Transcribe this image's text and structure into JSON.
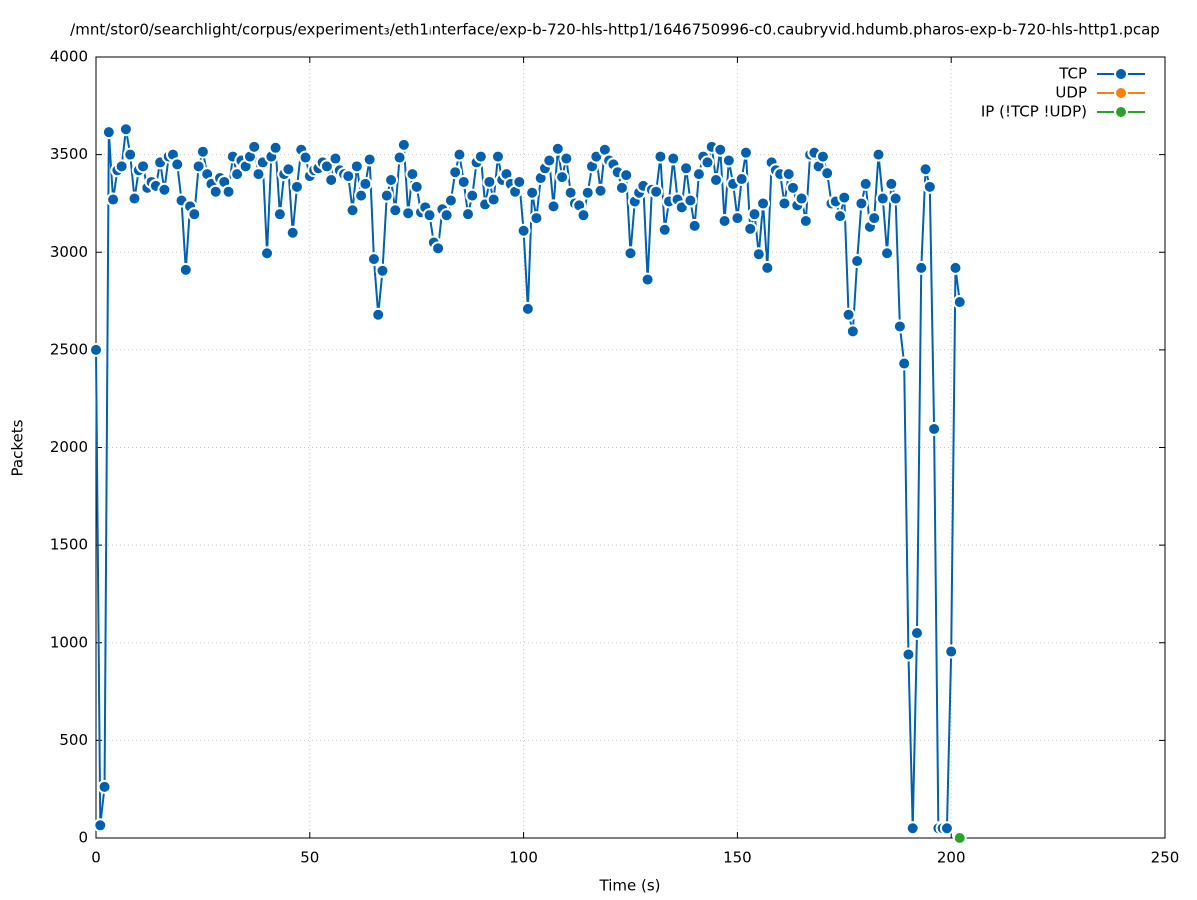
{
  "chart_data": {
    "type": "line",
    "title": "/mnt/stor0/searchlight/corpus/experiment₃/eth1ᵢnterface/exp-b-720-hls-http1/1646750996-c0.caubryvid.hdumb.pharos-exp-b-720-hls-http1.pcap",
    "x_label": "Time (s)",
    "y_label": "Packets",
    "xlim": [
      0,
      250
    ],
    "xticks": [
      0,
      50,
      100,
      150,
      200,
      250
    ],
    "ylim": [
      0,
      4000
    ],
    "yticks": [
      0,
      500,
      1000,
      1500,
      2000,
      2500,
      3000,
      3500,
      4000
    ],
    "grid": true,
    "legend": "top-right",
    "series": [
      {
        "name": "TCP",
        "color": "#0060ad",
        "x": [
          0,
          1,
          2,
          3,
          4,
          5,
          6,
          7,
          8,
          9,
          10,
          11,
          12,
          13,
          14,
          15,
          16,
          17,
          18,
          19,
          20,
          21,
          22,
          23,
          24,
          25,
          26,
          27,
          28,
          29,
          30,
          31,
          32,
          33,
          34,
          35,
          36,
          37,
          38,
          39,
          40,
          41,
          42,
          43,
          44,
          45,
          46,
          47,
          48,
          49,
          50,
          51,
          52,
          53,
          54,
          55,
          56,
          57,
          58,
          59,
          60,
          61,
          62,
          63,
          64,
          65,
          66,
          67,
          68,
          69,
          70,
          71,
          72,
          73,
          74,
          75,
          76,
          77,
          78,
          79,
          80,
          81,
          82,
          83,
          84,
          85,
          86,
          87,
          88,
          89,
          90,
          91,
          92,
          93,
          94,
          95,
          96,
          97,
          98,
          99,
          100,
          101,
          102,
          103,
          104,
          105,
          106,
          107,
          108,
          109,
          110,
          111,
          112,
          113,
          114,
          115,
          116,
          117,
          118,
          119,
          120,
          121,
          122,
          123,
          124,
          125,
          126,
          127,
          128,
          129,
          130,
          131,
          132,
          133,
          134,
          135,
          136,
          137,
          138,
          139,
          140,
          141,
          142,
          143,
          144,
          145,
          146,
          147,
          148,
          149,
          150,
          151,
          152,
          153,
          154,
          155,
          156,
          157,
          158,
          159,
          160,
          161,
          162,
          163,
          164,
          165,
          166,
          167,
          168,
          169,
          170,
          171,
          172,
          173,
          174,
          175,
          176,
          177,
          178,
          179,
          180,
          181,
          182,
          183,
          184,
          185,
          186,
          187,
          188,
          189,
          190,
          191,
          192,
          193,
          194,
          195,
          196,
          197,
          198,
          199,
          200,
          201,
          202
        ],
        "values": [
          2500,
          65,
          262,
          3615,
          3270,
          3420,
          3440,
          3630,
          3500,
          3275,
          3420,
          3440,
          3330,
          3360,
          3340,
          3460,
          3320,
          3490,
          3500,
          3450,
          3265,
          2910,
          3235,
          3195,
          3440,
          3515,
          3400,
          3350,
          3310,
          3380,
          3360,
          3310,
          3490,
          3400,
          3470,
          3440,
          3490,
          3540,
          3400,
          3460,
          2995,
          3490,
          3535,
          3195,
          3400,
          3425,
          3100,
          3335,
          3525,
          3485,
          3390,
          3420,
          3430,
          3460,
          3440,
          3370,
          3480,
          3420,
          3400,
          3390,
          3215,
          3440,
          3290,
          3350,
          3475,
          2965,
          2680,
          2905,
          3290,
          3370,
          3215,
          3485,
          3550,
          3200,
          3400,
          3335,
          3205,
          3230,
          3190,
          3050,
          3020,
          3220,
          3190,
          3265,
          3410,
          3500,
          3360,
          3195,
          3290,
          3460,
          3490,
          3245,
          3360,
          3270,
          3490,
          3370,
          3400,
          3350,
          3310,
          3360,
          3110,
          2710,
          3305,
          3175,
          3380,
          3430,
          3470,
          3235,
          3530,
          3385,
          3480,
          3305,
          3250,
          3240,
          3190,
          3305,
          3440,
          3490,
          3315,
          3525,
          3470,
          3450,
          3410,
          3330,
          3395,
          2995,
          3260,
          3305,
          3340,
          2860,
          3320,
          3310,
          3490,
          3115,
          3260,
          3480,
          3270,
          3230,
          3430,
          3265,
          3135,
          3400,
          3490,
          3460,
          3540,
          3370,
          3525,
          3160,
          3470,
          3350,
          3175,
          3375,
          3510,
          3120,
          3195,
          2990,
          3250,
          2920,
          3460,
          3420,
          3400,
          3250,
          3400,
          3330,
          3240,
          3275,
          3160,
          3500,
          3510,
          3440,
          3490,
          3405,
          3250,
          3260,
          3185,
          3280,
          2680,
          2595,
          2955,
          3250,
          3350,
          3130,
          3175,
          3500,
          3275,
          2995,
          3350,
          3275,
          2620,
          2430,
          940,
          50,
          1050,
          2920,
          3425,
          3335,
          2095,
          50,
          50,
          50,
          955,
          2920,
          2745
        ]
      },
      {
        "name": "UDP",
        "color": "#ff7f0e",
        "x": [],
        "values": []
      },
      {
        "name": "IP (!TCP  !UDP)",
        "color": "#2ca02c",
        "x": [
          202
        ],
        "values": [
          0
        ]
      }
    ]
  }
}
